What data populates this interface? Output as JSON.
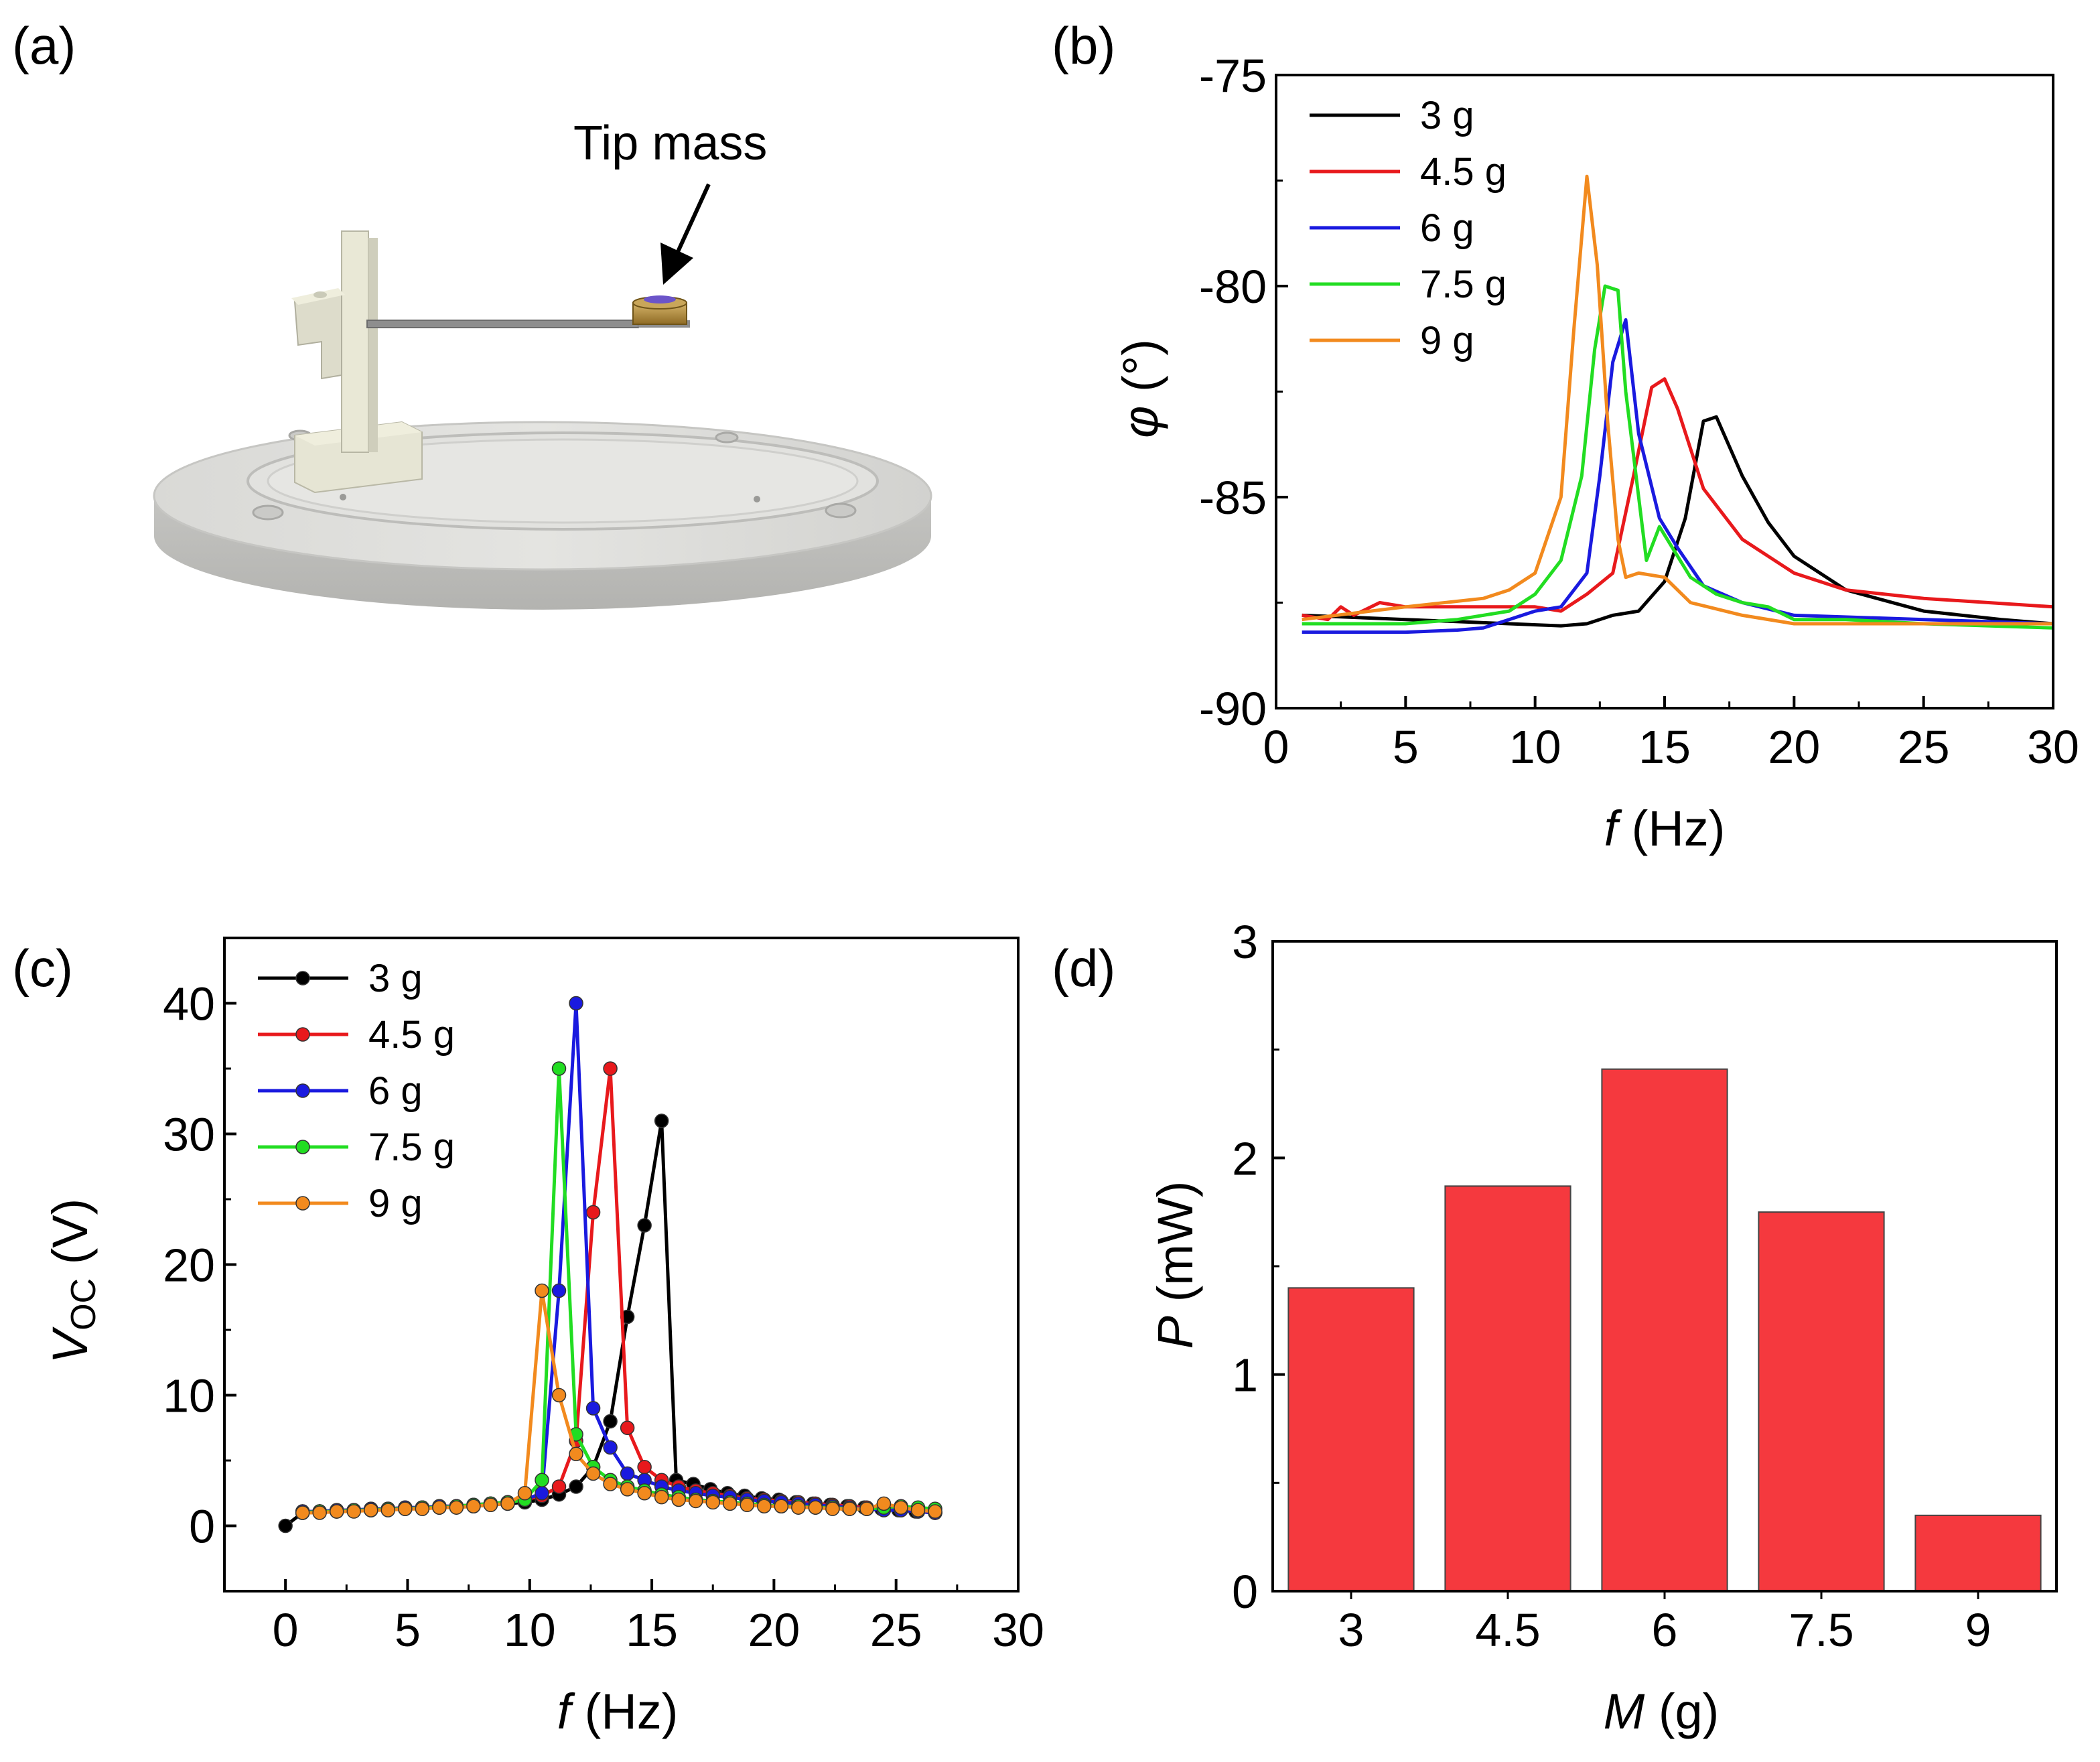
{
  "figure": {
    "panel_a": {
      "label": "(a)",
      "callout": "Tip mass"
    }
  },
  "chart_data": [
    {
      "id": "b",
      "panel_label": "(b)",
      "type": "line",
      "xlabel_italic": "f",
      "xlabel_rest": " (Hz)",
      "ylabel": "φ (°)",
      "ylabel_italic": "φ",
      "ylabel_rest": " (°)",
      "xlim": [
        0,
        30
      ],
      "ylim": [
        -90,
        -75
      ],
      "xticks": [
        0,
        5,
        10,
        15,
        20,
        25,
        30
      ],
      "yticks": [
        -90,
        -85,
        -80,
        -75
      ],
      "legend": "top-left",
      "series": [
        {
          "name": "3 g",
          "color": "#000000",
          "x": [
            1,
            5,
            9,
            11,
            12,
            13,
            14,
            15,
            15.8,
            16.5,
            17,
            18,
            19,
            20,
            22,
            25,
            28,
            30
          ],
          "y": [
            -87.8,
            -87.9,
            -88,
            -88.05,
            -88,
            -87.8,
            -87.7,
            -87.0,
            -85.5,
            -83.2,
            -83.1,
            -84.5,
            -85.6,
            -86.4,
            -87.2,
            -87.7,
            -87.9,
            -88.0
          ]
        },
        {
          "name": "4.5 g",
          "color": "#e8191c",
          "x": [
            1,
            2,
            2.5,
            3,
            4,
            5,
            8,
            10,
            11,
            12,
            13,
            13.8,
            14.5,
            15,
            15.5,
            16.5,
            18,
            20,
            22,
            25,
            30
          ],
          "y": [
            -87.8,
            -87.9,
            -87.6,
            -87.8,
            -87.5,
            -87.6,
            -87.6,
            -87.6,
            -87.7,
            -87.3,
            -86.8,
            -84.5,
            -82.4,
            -82.2,
            -82.9,
            -84.8,
            -86.0,
            -86.8,
            -87.2,
            -87.4,
            -87.6
          ]
        },
        {
          "name": "6 g",
          "color": "#1a1adf",
          "x": [
            1,
            5,
            7,
            8,
            9,
            10,
            11,
            12,
            12.5,
            13,
            13.5,
            14,
            14.8,
            15.5,
            16.5,
            18,
            20,
            25,
            30
          ],
          "y": [
            -88.2,
            -88.2,
            -88.15,
            -88.1,
            -87.9,
            -87.7,
            -87.6,
            -86.8,
            -84.5,
            -81.8,
            -80.8,
            -83.5,
            -85.5,
            -86.2,
            -87.1,
            -87.5,
            -87.8,
            -87.9,
            -88.0
          ]
        },
        {
          "name": "7.5 g",
          "color": "#22dd22",
          "x": [
            1,
            5,
            7,
            9,
            10,
            11,
            11.8,
            12.3,
            12.7,
            13.2,
            13.5,
            14,
            14.3,
            14.8,
            16,
            17,
            18,
            19,
            20,
            22,
            25,
            30
          ],
          "y": [
            -88.0,
            -88.0,
            -87.9,
            -87.7,
            -87.3,
            -86.5,
            -84.5,
            -81.5,
            -80.0,
            -80.1,
            -82.5,
            -85.0,
            -86.5,
            -85.7,
            -86.9,
            -87.3,
            -87.5,
            -87.6,
            -87.9,
            -87.9,
            -88.0,
            -88.1
          ]
        },
        {
          "name": "9 g",
          "color": "#f28a1e",
          "x": [
            1,
            5,
            8,
            9,
            10,
            11,
            11.5,
            12,
            12.4,
            12.8,
            13.2,
            13.5,
            14,
            15,
            16,
            18,
            20,
            25,
            30
          ],
          "y": [
            -87.9,
            -87.6,
            -87.4,
            -87.2,
            -86.8,
            -85.0,
            -81.0,
            -77.4,
            -79.5,
            -83.2,
            -86.0,
            -86.9,
            -86.8,
            -86.9,
            -87.5,
            -87.8,
            -88.0,
            -88.0,
            -88.0
          ]
        }
      ]
    },
    {
      "id": "c",
      "panel_label": "(c)",
      "type": "line",
      "marker": "circle",
      "xlabel_italic": "f",
      "xlabel_rest": " (Hz)",
      "ylabel_main": "V",
      "ylabel_sub": "OC",
      "ylabel_rest": " (V)",
      "xlim": [
        -2.5,
        30
      ],
      "ylim": [
        -5,
        45
      ],
      "xticks": [
        0,
        5,
        10,
        15,
        20,
        25,
        30
      ],
      "yticks": [
        0,
        10,
        20,
        30,
        40
      ],
      "legend": "top-left",
      "series": [
        {
          "name": "3 g",
          "color": "#000000",
          "x": [
            0,
            0.7,
            1.4,
            2.1,
            2.8,
            3.5,
            4.2,
            4.9,
            5.6,
            6.3,
            7.0,
            7.7,
            8.4,
            9.1,
            9.8,
            10.5,
            11.2,
            11.9,
            12.6,
            13.3,
            14.0,
            14.7,
            15.4,
            16.0,
            16.7,
            17.4,
            18.1,
            18.8,
            19.5,
            20.2,
            20.9,
            21.6,
            22.3,
            23.0,
            23.7,
            24.4,
            25.1,
            25.8,
            26.6
          ],
          "y": [
            0,
            1,
            1.1,
            1.1,
            1.2,
            1.2,
            1.3,
            1.3,
            1.4,
            1.4,
            1.5,
            1.5,
            1.6,
            1.7,
            1.8,
            2.0,
            2.4,
            3,
            4.5,
            8,
            16,
            23,
            31,
            3.5,
            3.2,
            2.8,
            2.5,
            2.3,
            2.1,
            2.0,
            1.8,
            1.7,
            1.6,
            1.5,
            1.4,
            1.3,
            1.2,
            1.1,
            1.0
          ]
        },
        {
          "name": "4.5 g",
          "color": "#e8191c",
          "x": [
            0.7,
            1.4,
            2.1,
            2.8,
            3.5,
            4.2,
            4.9,
            5.6,
            6.3,
            7.0,
            7.7,
            8.4,
            9.1,
            9.8,
            10.5,
            11.2,
            11.9,
            12.6,
            13.3,
            14.0,
            14.7,
            15.4,
            16.1,
            16.8,
            17.5,
            18.2,
            18.9,
            19.6,
            20.3,
            21.0,
            21.7,
            22.4,
            23.1,
            23.8,
            24.5,
            25.2,
            25.9,
            26.6
          ],
          "y": [
            1.1,
            1.1,
            1.2,
            1.2,
            1.3,
            1.3,
            1.4,
            1.4,
            1.5,
            1.5,
            1.6,
            1.7,
            1.8,
            2.0,
            2.3,
            3.0,
            6.5,
            24,
            35,
            7.5,
            4.5,
            3.5,
            3,
            2.7,
            2.5,
            2.3,
            2.1,
            2.0,
            1.9,
            1.8,
            1.7,
            1.6,
            1.5,
            1.4,
            1.3,
            1.2,
            1.1,
            1.0
          ]
        },
        {
          "name": "6 g",
          "color": "#1a1adf",
          "x": [
            0.7,
            1.4,
            2.1,
            2.8,
            3.5,
            4.2,
            4.9,
            5.6,
            6.3,
            7.0,
            7.7,
            8.4,
            9.1,
            9.8,
            10.5,
            11.2,
            11.9,
            12.6,
            13.3,
            14.0,
            14.7,
            15.4,
            16.1,
            16.8,
            17.5,
            18.2,
            18.9,
            19.6,
            20.3,
            21.0,
            21.7,
            22.4,
            23.1,
            23.8,
            24.5,
            25.2,
            25.9,
            26.6
          ],
          "y": [
            1.1,
            1.1,
            1.2,
            1.2,
            1.3,
            1.3,
            1.4,
            1.4,
            1.5,
            1.5,
            1.6,
            1.7,
            1.8,
            2.0,
            2.5,
            18,
            40,
            9,
            6,
            4,
            3.5,
            3.0,
            2.7,
            2.5,
            2.3,
            2.2,
            2.0,
            1.9,
            1.8,
            1.7,
            1.6,
            1.5,
            1.4,
            1.3,
            1.2,
            1.2,
            1.1,
            1.0
          ]
        },
        {
          "name": "7.5 g",
          "color": "#22dd22",
          "x": [
            0.7,
            1.4,
            2.1,
            2.8,
            3.5,
            4.2,
            4.9,
            5.6,
            6.3,
            7.0,
            7.7,
            8.4,
            9.1,
            9.8,
            10.5,
            11.2,
            11.9,
            12.6,
            13.3,
            14.0,
            14.7,
            15.4,
            16.1,
            16.8,
            17.5,
            18.2,
            18.9,
            19.6,
            20.3,
            21.0,
            21.7,
            22.4,
            23.1,
            23.8,
            24.5,
            25.2,
            25.9,
            26.6
          ],
          "y": [
            1.0,
            1.1,
            1.1,
            1.2,
            1.2,
            1.3,
            1.3,
            1.4,
            1.4,
            1.5,
            1.6,
            1.7,
            1.8,
            2.0,
            3.5,
            35,
            7,
            4.5,
            3.5,
            3.0,
            2.7,
            2.4,
            2.2,
            2.0,
            1.9,
            1.8,
            1.7,
            1.6,
            1.5,
            1.5,
            1.4,
            1.4,
            1.3,
            1.3,
            1.4,
            1.5,
            1.4,
            1.3
          ]
        },
        {
          "name": "9 g",
          "color": "#f28a1e",
          "x": [
            0.7,
            1.4,
            2.1,
            2.8,
            3.5,
            4.2,
            4.9,
            5.6,
            6.3,
            7.0,
            7.7,
            8.4,
            9.1,
            9.8,
            10.5,
            11.2,
            11.9,
            12.6,
            13.3,
            14.0,
            14.7,
            15.4,
            16.1,
            16.8,
            17.5,
            18.2,
            18.9,
            19.6,
            20.3,
            21.0,
            21.7,
            22.4,
            23.1,
            23.8,
            24.5,
            25.2,
            25.9,
            26.6
          ],
          "y": [
            1.0,
            1.0,
            1.1,
            1.1,
            1.2,
            1.2,
            1.3,
            1.3,
            1.4,
            1.4,
            1.5,
            1.6,
            1.7,
            2.5,
            18,
            10,
            5.5,
            4.0,
            3.2,
            2.8,
            2.5,
            2.2,
            2.0,
            1.9,
            1.8,
            1.7,
            1.6,
            1.5,
            1.5,
            1.4,
            1.4,
            1.3,
            1.3,
            1.3,
            1.7,
            1.4,
            1.2,
            1.1
          ]
        }
      ]
    },
    {
      "id": "d",
      "panel_label": "(d)",
      "type": "bar",
      "categories": [
        "3",
        "4.5",
        "6",
        "7.5",
        "9"
      ],
      "values": [
        1.4,
        1.87,
        2.41,
        1.75,
        0.35
      ],
      "color": "#f5393e",
      "xlabel_italic": "M",
      "xlabel_rest": " (g)",
      "ylabel_italic": "P",
      "ylabel_rest": " (mW)",
      "ylim": [
        0,
        3
      ],
      "yticks": [
        0,
        1,
        2,
        3
      ]
    }
  ]
}
